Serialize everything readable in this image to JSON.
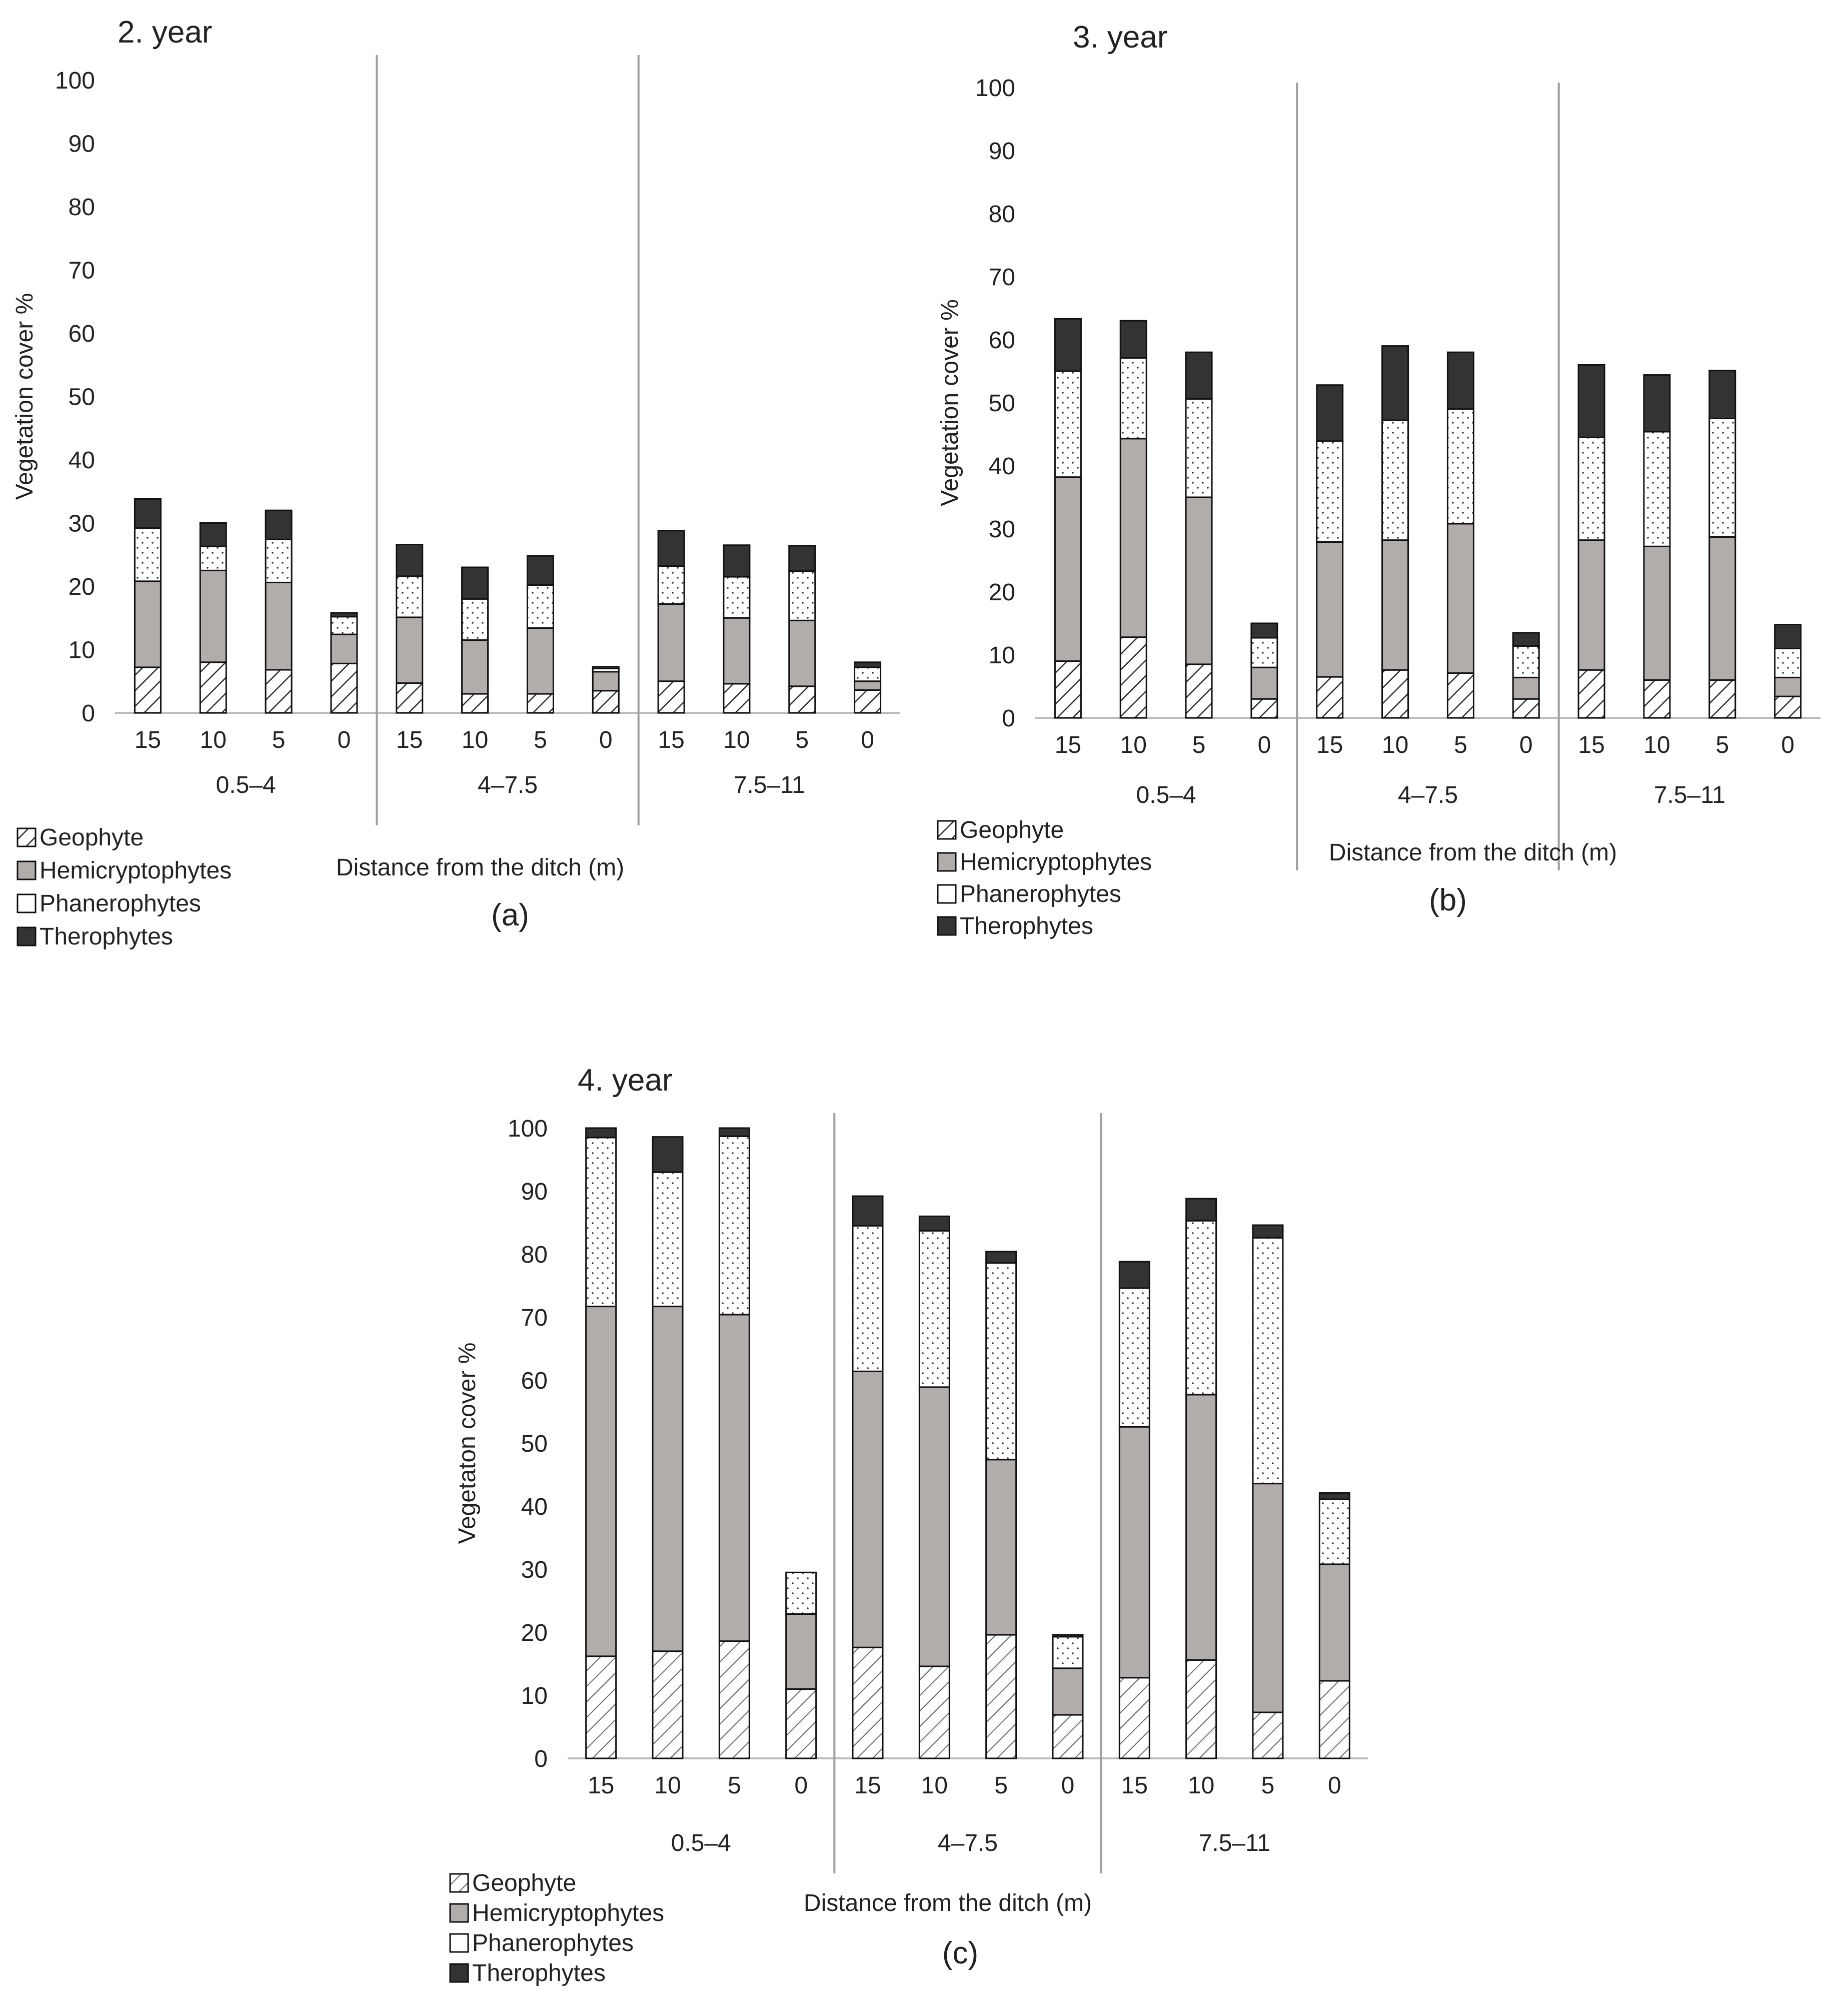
{
  "colors": {
    "geophyte_hatch": "#2a2a2a",
    "hemicryptophytes": "#b2acaa",
    "phanerophytes": "#ffffff",
    "therophytes": "#333333",
    "axis": "#bdbdbd",
    "divider": "#9e9e9e",
    "text": "#222222"
  },
  "legend_labels": [
    "Geophyte",
    "Hemicryptophytes",
    "Phanerophytes",
    "Therophytes"
  ],
  "chart_data": [
    {
      "id": "a",
      "type": "bar",
      "stacked": true,
      "title": "2. year",
      "panel_label": "(a)",
      "xlabel": "Distance from the ditch (m)",
      "ylabel": "Vegetation cover %",
      "ylim": [
        0,
        100
      ],
      "yticks": [
        0,
        10,
        20,
        30,
        40,
        50,
        60,
        70,
        80,
        90,
        100
      ],
      "groups": [
        "0.5–4",
        "4–7.5",
        "7.5–11"
      ],
      "categories": [
        "15",
        "10",
        "5",
        "0"
      ],
      "series": [
        {
          "name": "Geophyte",
          "values": [
            [
              7.2,
              8.0,
              6.8,
              7.8
            ],
            [
              4.7,
              3.0,
              3.0,
              3.5
            ],
            [
              5.0,
              4.6,
              4.2,
              3.6
            ]
          ]
        },
        {
          "name": "Hemicryptophytes",
          "values": [
            [
              13.6,
              14.5,
              13.8,
              4.6
            ],
            [
              10.4,
              8.5,
              10.4,
              3.0
            ],
            [
              12.2,
              10.4,
              10.4,
              1.4
            ]
          ]
        },
        {
          "name": "Phanerophytes",
          "values": [
            [
              8.4,
              3.8,
              6.8,
              2.8
            ],
            [
              6.5,
              6.5,
              6.8,
              0.5
            ],
            [
              6.0,
              6.5,
              7.8,
              2.2
            ]
          ]
        },
        {
          "name": "Therophytes",
          "values": [
            [
              4.6,
              3.7,
              4.6,
              0.6
            ],
            [
              5.0,
              5.0,
              4.6,
              0.3
            ],
            [
              5.6,
              5.0,
              4.0,
              0.8
            ]
          ]
        }
      ]
    },
    {
      "id": "b",
      "type": "bar",
      "stacked": true,
      "title": "3. year",
      "panel_label": "(b)",
      "xlabel": "Distance from the ditch (m)",
      "ylabel": "Vegetation cover %",
      "ylim": [
        0,
        100
      ],
      "yticks": [
        0,
        10,
        20,
        30,
        40,
        50,
        60,
        70,
        80,
        90,
        100
      ],
      "groups": [
        "0.5–4",
        "4–7.5",
        "7.5–11"
      ],
      "categories": [
        "15",
        "10",
        "5",
        "0"
      ],
      "series": [
        {
          "name": "Geophyte",
          "values": [
            [
              9.0,
              12.8,
              8.5,
              3.0
            ],
            [
              6.5,
              7.6,
              7.1,
              3.0
            ],
            [
              7.6,
              6.0,
              6.0,
              3.4
            ]
          ]
        },
        {
          "name": "Hemicryptophytes",
          "values": [
            [
              29.2,
              31.5,
              26.5,
              5.0
            ],
            [
              21.4,
              20.6,
              23.7,
              3.4
            ],
            [
              20.6,
              21.2,
              22.7,
              3.0
            ]
          ]
        },
        {
          "name": "Phanerophytes",
          "values": [
            [
              16.8,
              12.8,
              15.6,
              4.7
            ],
            [
              16.0,
              19.0,
              18.2,
              5.0
            ],
            [
              16.3,
              18.2,
              18.8,
              4.6
            ]
          ]
        },
        {
          "name": "Therophytes",
          "values": [
            [
              8.3,
              5.9,
              7.4,
              2.3
            ],
            [
              8.9,
              11.8,
              9.0,
              2.1
            ],
            [
              11.5,
              9.0,
              7.6,
              3.8
            ]
          ]
        }
      ]
    },
    {
      "id": "c",
      "type": "bar",
      "stacked": true,
      "title": "4. year",
      "panel_label": "(c)",
      "xlabel": "Distance from the ditch (m)",
      "ylabel": "Vegetaton cover %",
      "ylim": [
        0,
        100
      ],
      "yticks": [
        0,
        10,
        20,
        30,
        40,
        50,
        60,
        70,
        80,
        90,
        100
      ],
      "groups": [
        "0.5–4",
        "4–7.5",
        "7.5–11"
      ],
      "categories": [
        "15",
        "10",
        "5",
        "0"
      ],
      "series": [
        {
          "name": "Geophyte",
          "values": [
            [
              16.2,
              17.0,
              18.6,
              11.0
            ],
            [
              17.6,
              14.6,
              19.6,
              6.9
            ],
            [
              12.8,
              15.6,
              7.3,
              12.3
            ]
          ]
        },
        {
          "name": "Hemicryptophytes",
          "values": [
            [
              55.5,
              54.7,
              51.8,
              11.9
            ],
            [
              43.8,
              44.3,
              27.8,
              7.4
            ],
            [
              39.8,
              42.1,
              36.3,
              18.5
            ]
          ]
        },
        {
          "name": "Phanerophytes",
          "values": [
            [
              26.8,
              21.3,
              28.3,
              6.6
            ],
            [
              23.1,
              24.8,
              31.2,
              5.0
            ],
            [
              22.0,
              27.6,
              39.0,
              10.3
            ]
          ]
        },
        {
          "name": "Therophytes",
          "values": [
            [
              1.5,
              5.6,
              1.3,
              0.0
            ],
            [
              4.7,
              2.3,
              1.8,
              0.3
            ],
            [
              4.2,
              3.5,
              2.0,
              1.0
            ]
          ]
        }
      ]
    }
  ]
}
